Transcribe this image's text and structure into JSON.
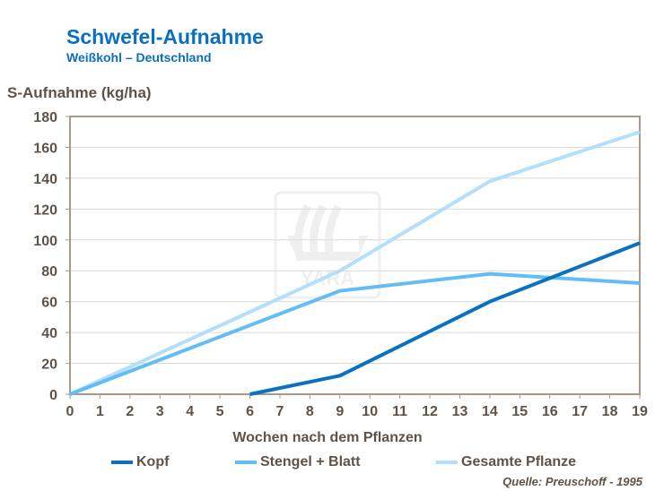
{
  "title": "Schwefel-Aufnahme",
  "subtitle": "Weißkohl  – Deutschland",
  "source": "Quelle:  Preuschoff - 1995",
  "watermark": "YARA",
  "chart_data": {
    "type": "line",
    "ylabel": "S-Aufnahme (kg/ha)",
    "xlabel": "Wochen nach dem Pflanzen",
    "xlim": [
      0,
      19
    ],
    "ylim": [
      0,
      180
    ],
    "xticks": [
      0,
      1,
      2,
      3,
      4,
      5,
      6,
      7,
      8,
      9,
      10,
      11,
      12,
      13,
      14,
      15,
      16,
      17,
      18,
      19
    ],
    "yticks": [
      0,
      20,
      40,
      60,
      80,
      100,
      120,
      140,
      160,
      180
    ],
    "grid": "horizontal",
    "legend": "bottom",
    "series": [
      {
        "name": "Kopf",
        "color": "#0a70c0",
        "x": [
          6,
          9,
          14,
          19
        ],
        "y": [
          0,
          12,
          60,
          98
        ]
      },
      {
        "name": "Stengel + Blatt",
        "color": "#64bcf5",
        "x": [
          0,
          9,
          14,
          19
        ],
        "y": [
          0,
          67,
          78,
          72
        ]
      },
      {
        "name": "Gesamte Pflanze",
        "color": "#b3defc",
        "x": [
          0,
          9,
          14,
          19
        ],
        "y": [
          0,
          80,
          138,
          170
        ]
      }
    ]
  }
}
